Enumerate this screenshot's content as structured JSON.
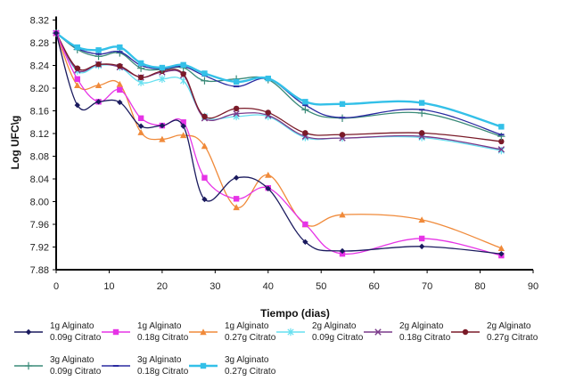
{
  "chart_data": {
    "type": "line",
    "title": "",
    "xlabel": "Tiempo (dias)",
    "ylabel": "Log UFC\\g",
    "xlim": [
      0,
      90
    ],
    "ylim": [
      7.88,
      8.32
    ],
    "xticks": [
      "0",
      "10",
      "20",
      "30",
      "40",
      "50",
      "60",
      "70",
      "80",
      "90"
    ],
    "yticks": [
      "8.32",
      "8.28",
      "8.24",
      "8.20",
      "8.16",
      "8.12",
      "8.08",
      "8.04",
      "8.00",
      "7.96",
      "7.92",
      "7.88"
    ],
    "grid": false,
    "legend_position": "bottom",
    "x": [
      0,
      4,
      8,
      12,
      16,
      20,
      24,
      28,
      34,
      40,
      47,
      54,
      69,
      84
    ],
    "series": [
      {
        "name": "1g Alginato 0.09g Citrato",
        "line1": "1g Alginato",
        "line2": "0.09g Citrato",
        "color": "#1a1a5e",
        "marker": "diamond",
        "values": [
          8.297,
          8.17,
          8.176,
          8.175,
          8.133,
          8.134,
          8.133,
          8.004,
          8.042,
          8.023,
          7.929,
          7.913,
          7.921,
          7.908
        ]
      },
      {
        "name": "1g Alginato 0.18g Citrato",
        "line1": "1g Alginato",
        "line2": "0.18g Citrato",
        "color": "#e633e6",
        "marker": "square",
        "values": [
          8.297,
          8.216,
          8.176,
          8.197,
          8.147,
          8.134,
          8.14,
          8.042,
          8.005,
          8.024,
          7.96,
          7.908,
          7.935,
          7.905
        ]
      },
      {
        "name": "1g Alginato 0.27g Citrato",
        "line1": "1g Alginato",
        "line2": "0.27g Citrato",
        "color": "#f08a3a",
        "marker": "triangle",
        "values": [
          8.297,
          8.205,
          8.205,
          8.207,
          8.122,
          8.11,
          8.117,
          8.098,
          7.99,
          8.047,
          7.96,
          7.977,
          7.968,
          7.918
        ]
      },
      {
        "name": "2g Alginato 0.09g Citrato",
        "line1": "2g Alginato",
        "line2": "0.09g Citrato",
        "color": "#66e0f0",
        "marker": "star",
        "values": [
          8.297,
          8.23,
          8.24,
          8.237,
          8.21,
          8.216,
          8.213,
          8.15,
          8.15,
          8.15,
          8.113,
          8.112,
          8.113,
          8.09
        ]
      },
      {
        "name": "2g Alginato 0.18g Citrato",
        "line1": "2g Alginato",
        "line2": "0.18g Citrato",
        "color": "#7a3a8a",
        "marker": "x",
        "values": [
          8.297,
          8.232,
          8.242,
          8.237,
          8.219,
          8.228,
          8.223,
          8.147,
          8.155,
          8.152,
          8.115,
          8.112,
          8.115,
          8.092
        ]
      },
      {
        "name": "2g Alginato 0.27g Citrato",
        "line1": "2g Alginato",
        "line2": "0.27g Citrato",
        "color": "#7a1a28",
        "marker": "circle",
        "values": [
          8.297,
          8.235,
          8.242,
          8.239,
          8.219,
          8.23,
          8.225,
          8.15,
          8.164,
          8.157,
          8.121,
          8.118,
          8.121,
          8.106
        ]
      },
      {
        "name": "3g Alginato 0.09g Citrato",
        "line1": "3g Alginato",
        "line2": "0.09g Citrato",
        "color": "#3a8a78",
        "marker": "plus",
        "values": [
          8.297,
          8.268,
          8.256,
          8.262,
          8.235,
          8.233,
          8.236,
          8.213,
          8.216,
          8.215,
          8.162,
          8.147,
          8.156,
          8.115
        ]
      },
      {
        "name": "3g Alginato 0.18g Citrato",
        "line1": "3g Alginato",
        "line2": "0.18g Citrato",
        "color": "#2a2aa0",
        "marker": "dash",
        "values": [
          8.297,
          8.27,
          8.26,
          8.264,
          8.24,
          8.234,
          8.238,
          8.222,
          8.203,
          8.216,
          8.17,
          8.148,
          8.162,
          8.118
        ]
      },
      {
        "name": "3g Alginato 0.27g Citrato",
        "line1": "3g Alginato",
        "line2": "0.27g Citrato",
        "color": "#33c0e8",
        "marker": "square",
        "values": [
          8.297,
          8.272,
          8.267,
          8.272,
          8.244,
          8.236,
          8.241,
          8.226,
          8.211,
          8.217,
          8.176,
          8.172,
          8.174,
          8.132
        ]
      }
    ]
  }
}
